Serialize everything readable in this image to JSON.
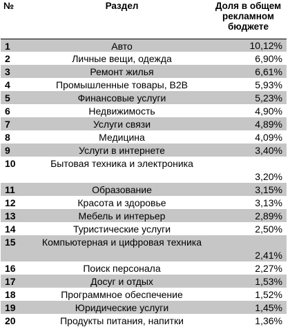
{
  "header": {
    "num": "№",
    "name": "Раздел",
    "share": "Доля в общем рекламном бюджете"
  },
  "rows": [
    {
      "num": "1",
      "name": "Авто",
      "share": "10,12%"
    },
    {
      "num": "2",
      "name": "Личные вещи, одежда",
      "share": "6,90%"
    },
    {
      "num": "3",
      "name": "Ремонт жилья",
      "share": "6,61%"
    },
    {
      "num": "4",
      "name": "Промышленные товары, B2B",
      "share": "5,93%"
    },
    {
      "num": "5",
      "name": "Финансовые услуги",
      "share": "5,23%"
    },
    {
      "num": "6",
      "name": "Недвижимость",
      "share": "4,90%"
    },
    {
      "num": "7",
      "name": "Услуги связи",
      "share": "4,89%"
    },
    {
      "num": "8",
      "name": "Медицина",
      "share": "4,09%"
    },
    {
      "num": "9",
      "name": "Услуги в интернете",
      "share": "3,40%"
    },
    {
      "num": "10",
      "name": "Бытовая техника и электроника",
      "share": "3,20%"
    },
    {
      "num": "11",
      "name": "Образование",
      "share": "3,15%"
    },
    {
      "num": "12",
      "name": "Красота и здоровье",
      "share": "3,13%"
    },
    {
      "num": "13",
      "name": "Мебель и интерьер",
      "share": "2,89%"
    },
    {
      "num": "14",
      "name": "Туристические услуги",
      "share": "2,50%"
    },
    {
      "num": "15",
      "name": "Компьютерная и цифровая техника",
      "share": "2,41%"
    },
    {
      "num": "16",
      "name": "Поиск персонала",
      "share": "2,27%"
    },
    {
      "num": "17",
      "name": "Досуг и отдых",
      "share": "1,53%"
    },
    {
      "num": "18",
      "name": "Программное обеспечение",
      "share": "1,52%"
    },
    {
      "num": "19",
      "name": "Юридические услуги",
      "share": "1,45%"
    },
    {
      "num": "20",
      "name": "Продукты питания, напитки",
      "share": "1,36%"
    }
  ]
}
